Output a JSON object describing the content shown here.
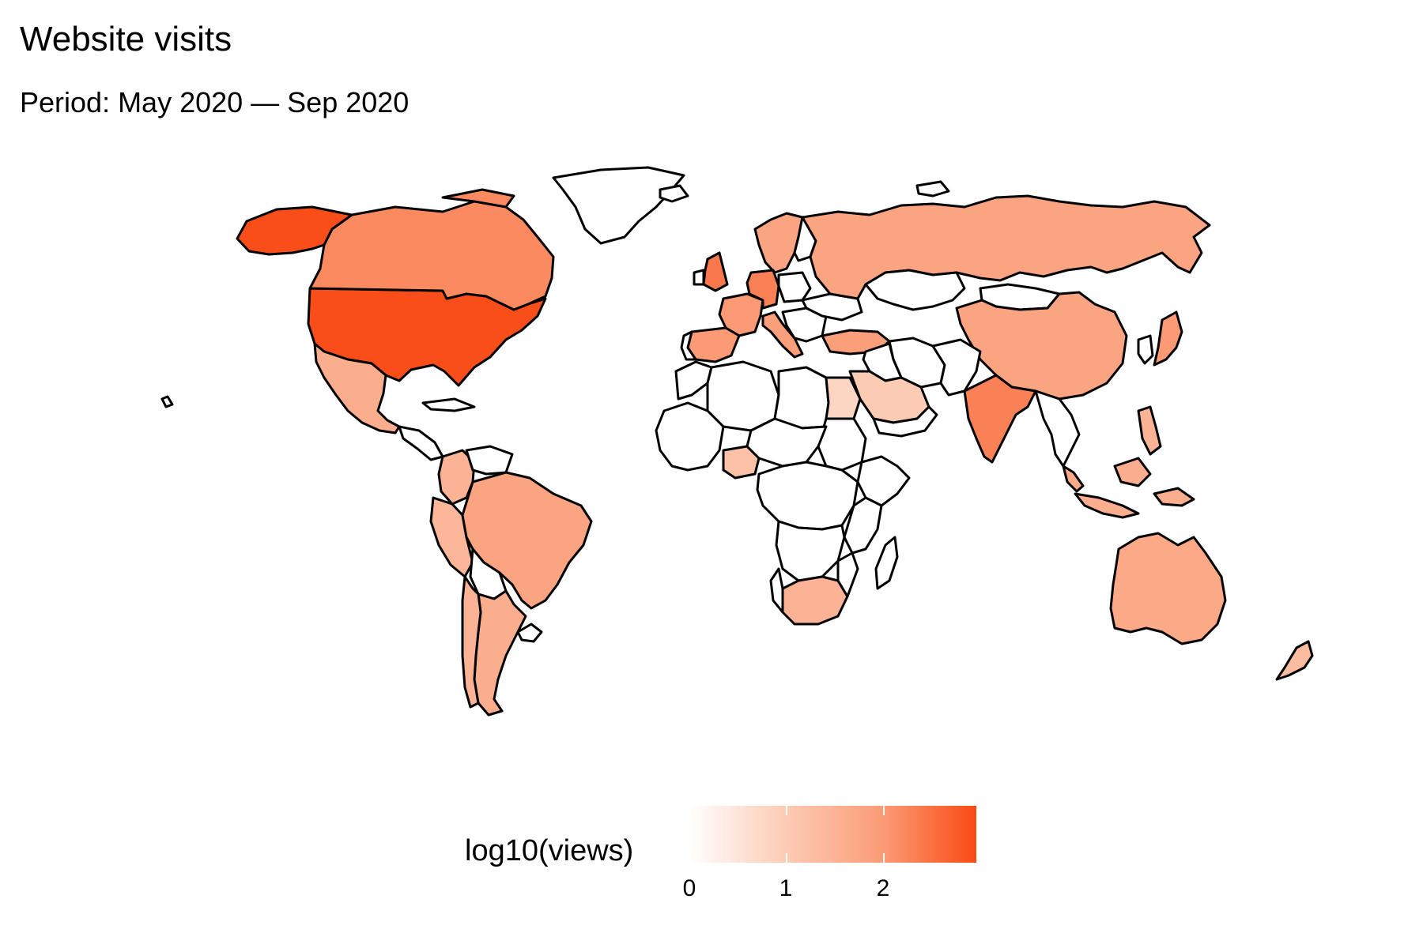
{
  "title": "Website visits",
  "subtitle": "Period: May 2020 — Sep 2020",
  "legend": {
    "title": "log10(views)",
    "ticks": [
      "0",
      "1",
      "2"
    ],
    "range": [
      0,
      2.95
    ],
    "colors": [
      "#ffffff",
      "#f94a14"
    ]
  },
  "chart_data": {
    "type": "choropleth",
    "title": "Website visits",
    "subtitle": "Period: May 2020 — Sep 2020",
    "value": "log10(views)",
    "scale": [
      0,
      2.95
    ],
    "regions": [
      {
        "name": "United States",
        "value": 2.9
      },
      {
        "name": "Canada",
        "value": 2.2
      },
      {
        "name": "Mexico",
        "value": 1.6
      },
      {
        "name": "Brazil",
        "value": 1.8
      },
      {
        "name": "Argentina",
        "value": 1.6
      },
      {
        "name": "Chile",
        "value": 1.5
      },
      {
        "name": "Peru",
        "value": 1.4
      },
      {
        "name": "Colombia",
        "value": 1.5
      },
      {
        "name": "Greenland",
        "value": 0
      },
      {
        "name": "Russia",
        "value": 1.8
      },
      {
        "name": "China",
        "value": 1.8
      },
      {
        "name": "India",
        "value": 2.3
      },
      {
        "name": "Australia",
        "value": 1.7
      },
      {
        "name": "Mongolia",
        "value": 0
      },
      {
        "name": "Kazakhstan",
        "value": 0
      },
      {
        "name": "Saudi Arabia",
        "value": 1.0
      },
      {
        "name": "Egypt",
        "value": 0.8
      },
      {
        "name": "Nigeria",
        "value": 1.2
      },
      {
        "name": "South Africa",
        "value": 1.5
      },
      {
        "name": "Japan",
        "value": 2.0
      },
      {
        "name": "United Kingdom",
        "value": 2.4
      },
      {
        "name": "France",
        "value": 2.0
      },
      {
        "name": "Germany",
        "value": 2.3
      },
      {
        "name": "Spain",
        "value": 2.0
      },
      {
        "name": "Italy",
        "value": 1.9
      },
      {
        "name": "Scandinavia",
        "value": 1.8
      },
      {
        "name": "Turkey",
        "value": 1.9
      },
      {
        "name": "Indonesia",
        "value": 1.6
      },
      {
        "name": "Malaysia",
        "value": 1.7
      },
      {
        "name": "Thailand",
        "value": 1.6
      },
      {
        "name": "Philippines",
        "value": 1.5
      },
      {
        "name": "New Zealand",
        "value": 1.3
      },
      {
        "name": "Madagascar",
        "value": 0
      },
      {
        "name": "Algeria",
        "value": 0
      },
      {
        "name": "Libya",
        "value": 0
      },
      {
        "name": "Sudan",
        "value": 0
      },
      {
        "name": "Bolivia",
        "value": 0
      },
      {
        "name": "Iran",
        "value": 0
      }
    ]
  }
}
